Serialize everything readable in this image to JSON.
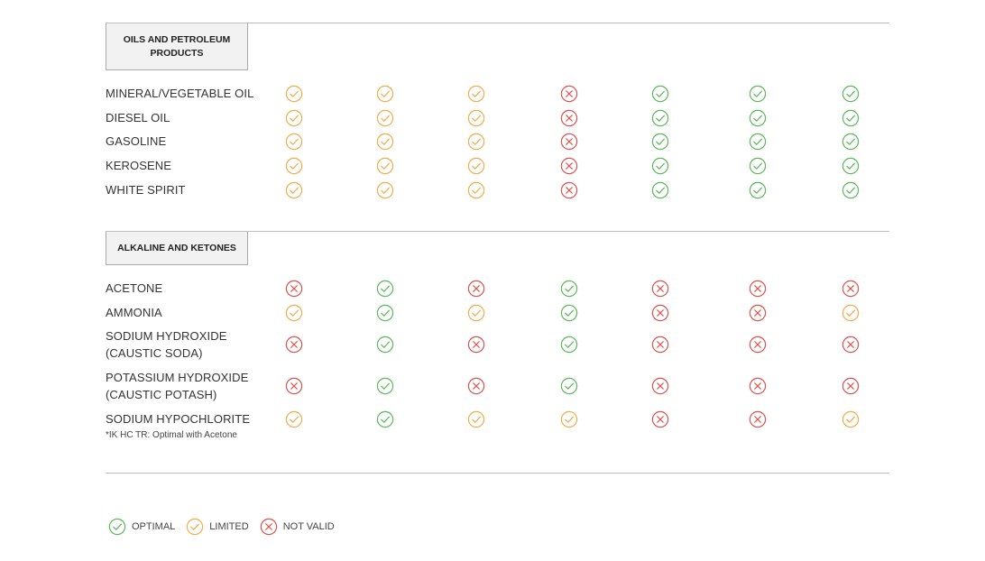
{
  "status_colors": {
    "optimal": "#5cb85c",
    "limited": "#f0ad4e",
    "not_valid": "#d9534f"
  },
  "sections": [
    {
      "title": "OILS AND PETROLEUM PRODUCTS",
      "rows": [
        {
          "label": "MINERAL/VEGETABLE OIL",
          "values": [
            "limited",
            "limited",
            "limited",
            "not_valid",
            "optimal",
            "optimal",
            "optimal"
          ]
        },
        {
          "label": "DIESEL OIL",
          "values": [
            "limited",
            "limited",
            "limited",
            "not_valid",
            "optimal",
            "optimal",
            "optimal"
          ]
        },
        {
          "label": "GASOLINE",
          "values": [
            "limited",
            "limited",
            "limited",
            "not_valid",
            "optimal",
            "optimal",
            "optimal"
          ]
        },
        {
          "label": "KEROSENE",
          "values": [
            "limited",
            "limited",
            "limited",
            "not_valid",
            "optimal",
            "optimal",
            "optimal"
          ]
        },
        {
          "label": "WHITE SPIRIT",
          "values": [
            "limited",
            "limited",
            "limited",
            "not_valid",
            "optimal",
            "optimal",
            "optimal"
          ]
        }
      ]
    },
    {
      "title": "ALKALINE AND KETONES",
      "rows": [
        {
          "label": "ACETONE",
          "values": [
            "not_valid",
            "optimal",
            "not_valid",
            "optimal",
            "not_valid",
            "not_valid",
            "not_valid"
          ]
        },
        {
          "label": "AMMONIA",
          "values": [
            "limited",
            "optimal",
            "limited",
            "optimal",
            "not_valid",
            "not_valid",
            "limited"
          ]
        },
        {
          "label": "SODIUM HYDROXIDE\n(CAUSTIC SODA)",
          "values": [
            "not_valid",
            "optimal",
            "not_valid",
            "optimal",
            "not_valid",
            "not_valid",
            "not_valid"
          ]
        },
        {
          "label": "POTASSIUM HYDROXIDE\n(CAUSTIC POTASH)",
          "values": [
            "not_valid",
            "optimal",
            "not_valid",
            "optimal",
            "not_valid",
            "not_valid",
            "not_valid"
          ]
        },
        {
          "label": "SODIUM HYPOCHLORITE",
          "values": [
            "limited",
            "optimal",
            "limited",
            "limited",
            "not_valid",
            "not_valid",
            "limited"
          ]
        }
      ]
    }
  ],
  "footnote": "*IK HC TR: Optimal with Acetone",
  "legend": [
    {
      "status": "optimal",
      "label": "OPTIMAL"
    },
    {
      "status": "limited",
      "label": "LIMITED"
    },
    {
      "status": "not_valid",
      "label": "NOT VALID"
    }
  ]
}
